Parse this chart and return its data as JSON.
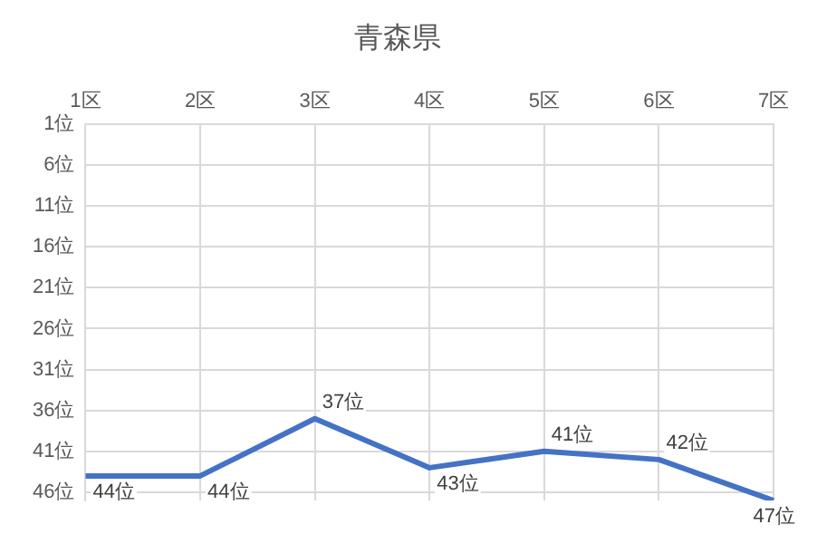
{
  "chart_data": {
    "type": "line",
    "title": "青森県",
    "categories": [
      "1区",
      "2区",
      "3区",
      "4区",
      "5区",
      "6区",
      "7区"
    ],
    "series": [
      {
        "color": "#4472c4",
        "values": [
          44,
          44,
          37,
          43,
          41,
          42,
          47
        ],
        "value_labels": [
          "44位",
          "44位",
          "37位",
          "43位",
          "41位",
          "42位",
          "47位"
        ]
      }
    ],
    "ylim": [
      47,
      1
    ],
    "yticks": [
      {
        "value": 1,
        "label": "1位"
      },
      {
        "value": 6,
        "label": "6位"
      },
      {
        "value": 11,
        "label": "11位"
      },
      {
        "value": 16,
        "label": "16位"
      },
      {
        "value": 21,
        "label": "21位"
      },
      {
        "value": 26,
        "label": "26位"
      },
      {
        "value": 31,
        "label": "31位"
      },
      {
        "value": 36,
        "label": "36位"
      },
      {
        "value": 41,
        "label": "41位"
      },
      {
        "value": 46,
        "label": "46位"
      }
    ],
    "grid": true,
    "marker": "none",
    "line_style": "solid",
    "legend": false
  }
}
